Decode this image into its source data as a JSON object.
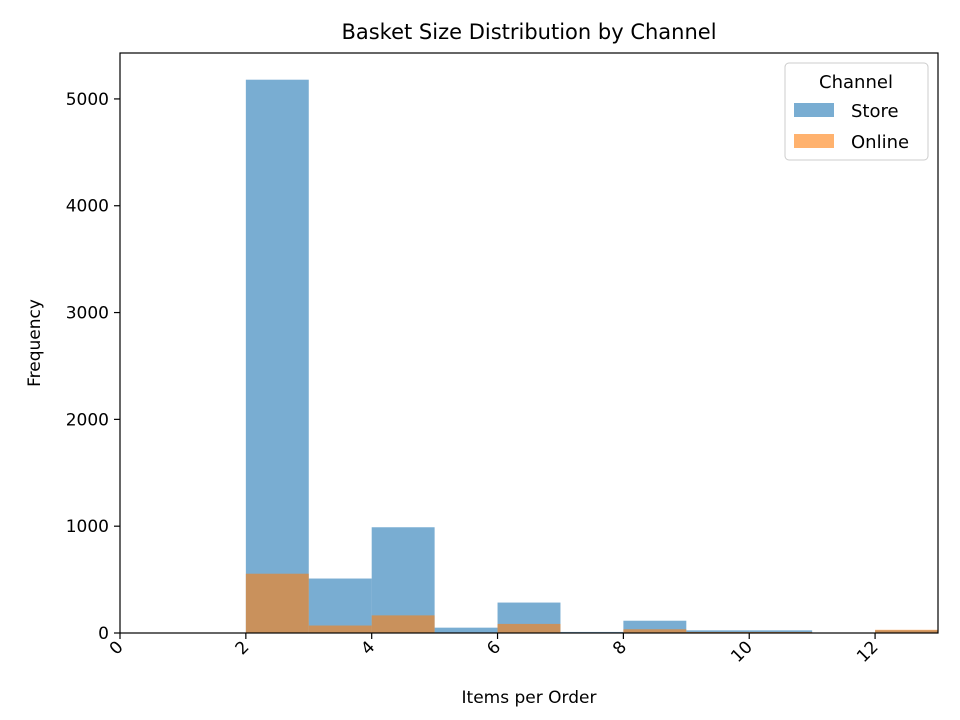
{
  "chart_data": {
    "type": "bar",
    "title": "Basket Size Distribution by Channel",
    "xlabel": "Items per Order",
    "ylabel": "Frequency",
    "xlim": [
      0,
      13
    ],
    "ylim": [
      0,
      5430
    ],
    "xticks": [
      0,
      2,
      4,
      6,
      8,
      10,
      12
    ],
    "yticks": [
      0,
      1000,
      2000,
      3000,
      4000,
      5000
    ],
    "bin_edges": [
      2,
      3,
      4,
      5,
      6,
      7,
      8,
      9,
      10,
      11,
      12,
      13
    ],
    "legend_title": "Channel",
    "legend_position": "top-right",
    "grid": false,
    "series": [
      {
        "name": "Store",
        "color": "#1f77b4",
        "opacity": 0.6,
        "values": [
          5180,
          510,
          990,
          50,
          285,
          10,
          115,
          25,
          25,
          0,
          25
        ]
      },
      {
        "name": "Online",
        "color": "#ff7f0e",
        "opacity": 0.6,
        "values": [
          555,
          70,
          165,
          5,
          85,
          5,
          35,
          10,
          10,
          0,
          30
        ]
      }
    ]
  }
}
